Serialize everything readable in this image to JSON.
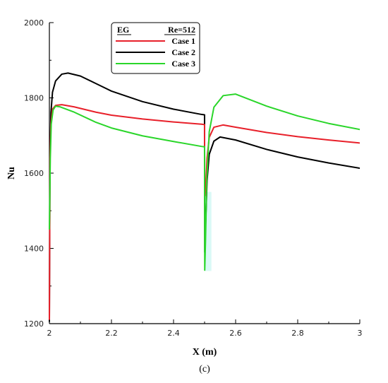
{
  "chart_data": {
    "type": "line",
    "xlabel": "X (m)",
    "ylabel": "Nu",
    "caption": "(c)",
    "xlim": [
      2,
      3
    ],
    "ylim": [
      1200,
      2000
    ],
    "x_ticks": [
      2,
      2.2,
      2.4,
      2.6,
      2.8,
      3
    ],
    "x_tick_labels": [
      "2",
      "2.2",
      "2.4",
      "2.6",
      "2.8",
      "3"
    ],
    "y_ticks": [
      1200,
      1400,
      1600,
      1800,
      2000
    ],
    "y_tick_labels": [
      "1200",
      "1400",
      "1600",
      "1800",
      "2000"
    ],
    "grid": false,
    "legend": {
      "placement": "top-left",
      "header_left": "EG",
      "header_right": "Re=512"
    },
    "series": [
      {
        "name": "Case 1",
        "color": "#e8202a",
        "points": [
          [
            2.0,
            1210
          ],
          [
            2.002,
            1640
          ],
          [
            2.005,
            1730
          ],
          [
            2.01,
            1770
          ],
          [
            2.02,
            1780
          ],
          [
            2.04,
            1782
          ],
          [
            2.08,
            1776
          ],
          [
            2.15,
            1762
          ],
          [
            2.2,
            1754
          ],
          [
            2.3,
            1744
          ],
          [
            2.4,
            1736
          ],
          [
            2.49,
            1730
          ],
          [
            2.4999,
            1729
          ],
          [
            2.5,
            1660
          ],
          [
            2.501,
            1540
          ],
          [
            2.504,
            1560
          ],
          [
            2.508,
            1640
          ],
          [
            2.515,
            1695
          ],
          [
            2.53,
            1722
          ],
          [
            2.56,
            1728
          ],
          [
            2.6,
            1722
          ],
          [
            2.7,
            1708
          ],
          [
            2.8,
            1697
          ],
          [
            2.9,
            1688
          ],
          [
            3.0,
            1680
          ]
        ]
      },
      {
        "name": "Case 2",
        "color": "#000000",
        "points": [
          [
            2.0,
            1205
          ],
          [
            2.002,
            1640
          ],
          [
            2.005,
            1760
          ],
          [
            2.01,
            1815
          ],
          [
            2.02,
            1845
          ],
          [
            2.04,
            1863
          ],
          [
            2.06,
            1866
          ],
          [
            2.1,
            1858
          ],
          [
            2.15,
            1838
          ],
          [
            2.2,
            1818
          ],
          [
            2.3,
            1790
          ],
          [
            2.4,
            1770
          ],
          [
            2.49,
            1756
          ],
          [
            2.4999,
            1755
          ],
          [
            2.5,
            1640
          ],
          [
            2.5005,
            1390
          ],
          [
            2.504,
            1480
          ],
          [
            2.508,
            1580
          ],
          [
            2.515,
            1650
          ],
          [
            2.53,
            1685
          ],
          [
            2.55,
            1696
          ],
          [
            2.6,
            1688
          ],
          [
            2.7,
            1663
          ],
          [
            2.8,
            1643
          ],
          [
            2.9,
            1627
          ],
          [
            3.0,
            1613
          ]
        ]
      },
      {
        "name": "Case 3",
        "color": "#2ad62a",
        "points": [
          [
            2.0,
            1450
          ],
          [
            2.003,
            1640
          ],
          [
            2.006,
            1730
          ],
          [
            2.012,
            1768
          ],
          [
            2.02,
            1778
          ],
          [
            2.035,
            1776
          ],
          [
            2.08,
            1762
          ],
          [
            2.15,
            1735
          ],
          [
            2.2,
            1720
          ],
          [
            2.3,
            1699
          ],
          [
            2.4,
            1684
          ],
          [
            2.49,
            1671
          ],
          [
            2.4999,
            1670
          ],
          [
            2.5,
            1560
          ],
          [
            2.5005,
            1342
          ],
          [
            2.503,
            1420
          ],
          [
            2.507,
            1580
          ],
          [
            2.515,
            1710
          ],
          [
            2.53,
            1775
          ],
          [
            2.56,
            1806
          ],
          [
            2.6,
            1810
          ],
          [
            2.7,
            1778
          ],
          [
            2.8,
            1752
          ],
          [
            2.9,
            1732
          ],
          [
            3.0,
            1716
          ]
        ]
      }
    ]
  }
}
